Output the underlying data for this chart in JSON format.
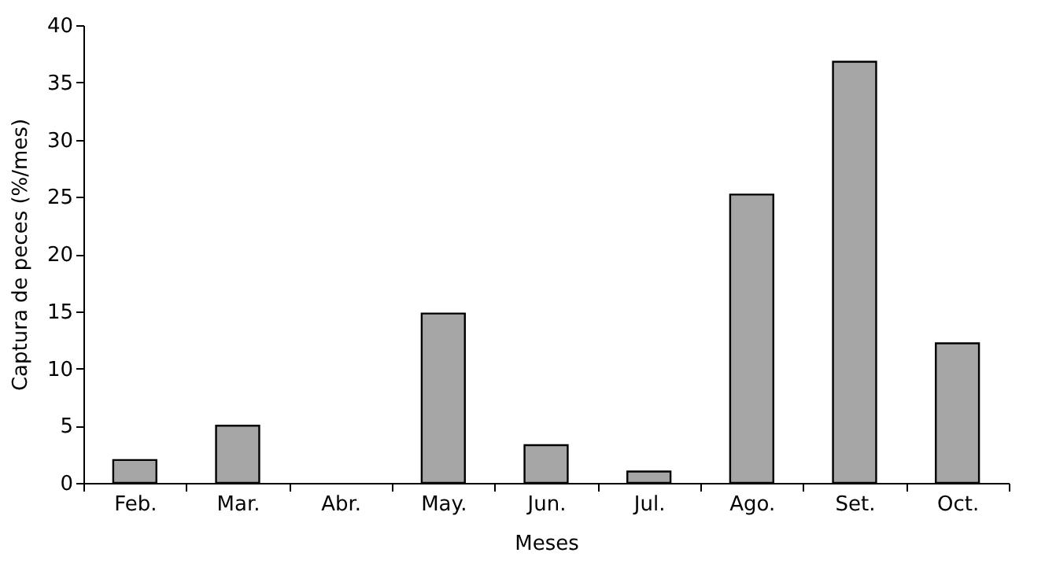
{
  "chart_data": {
    "type": "bar",
    "xlabel": "Meses",
    "ylabel": "Captura de peces (%/mes)",
    "categories": [
      "Feb.",
      "Mar.",
      "Abr.",
      "May.",
      "Jun.",
      "Jul.",
      "Ago.",
      "Set.",
      "Oct."
    ],
    "values": [
      2,
      5,
      0,
      14.8,
      3.3,
      1,
      25.2,
      36.8,
      12.2
    ],
    "color": "#a6a6a6",
    "ylim": [
      0,
      40
    ],
    "yticks": [
      0,
      5,
      10,
      15,
      20,
      25,
      30,
      35,
      40
    ],
    "grid": false
  }
}
